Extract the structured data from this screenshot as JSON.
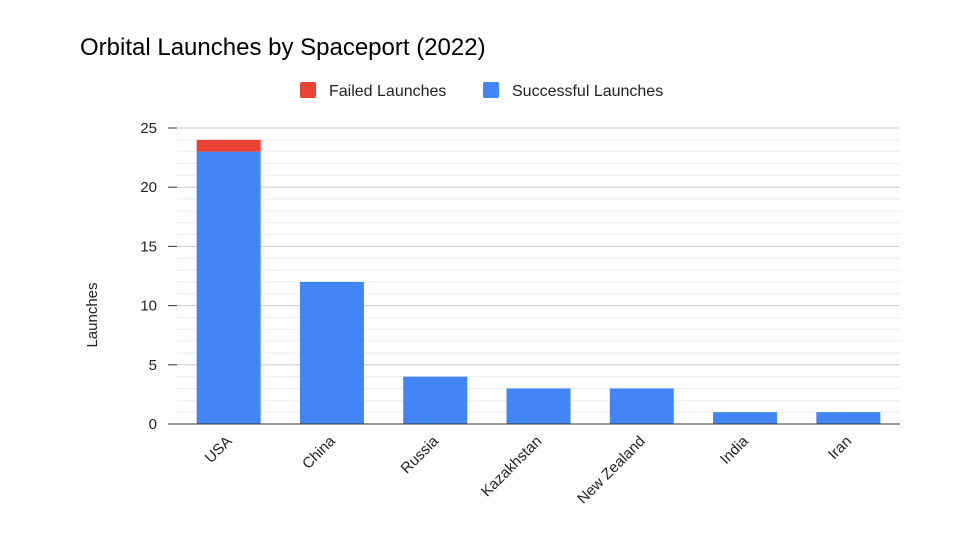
{
  "chart_data": {
    "type": "bar",
    "stacked": true,
    "title": "Orbital Launches by Spaceport (2022)",
    "xlabel": "",
    "ylabel": "Launches",
    "ylim": [
      0,
      25
    ],
    "yticks": [
      0,
      5,
      10,
      15,
      20,
      25
    ],
    "minor_gridlines_per_major": 5,
    "legend_position": "top",
    "categories": [
      "USA",
      "China",
      "Russia",
      "Kazakhstan",
      "New Zealand",
      "India",
      "Iran"
    ],
    "series": [
      {
        "name": "Successful Launches",
        "color": "#4285f4",
        "values": [
          23,
          12,
          4,
          3,
          3,
          1,
          1
        ]
      },
      {
        "name": "Failed Launches",
        "color": "#ea4335",
        "values": [
          1,
          0,
          0,
          0,
          0,
          0,
          0
        ]
      }
    ],
    "legend_order": [
      "Failed Launches",
      "Successful Launches"
    ]
  }
}
